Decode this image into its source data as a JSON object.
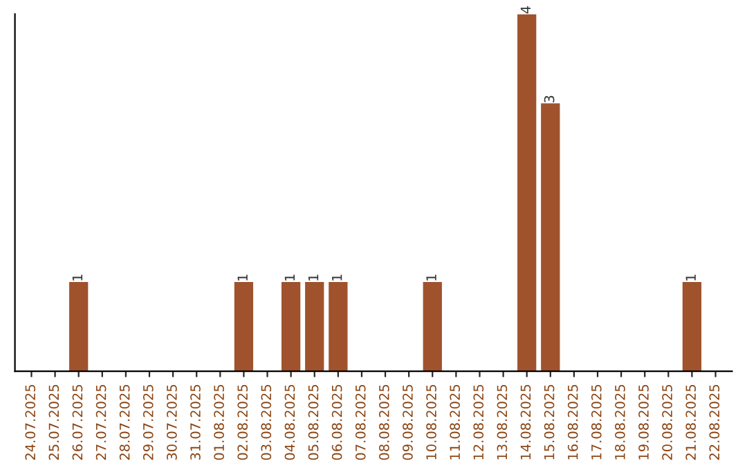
{
  "chart_data": {
    "type": "bar",
    "categories": [
      "24.07.2025",
      "25.07.2025",
      "26.07.2025",
      "27.07.2025",
      "28.07.2025",
      "29.07.2025",
      "30.07.2025",
      "31.07.2025",
      "01.08.2025",
      "02.08.2025",
      "03.08.2025",
      "04.08.2025",
      "05.08.2025",
      "06.08.2025",
      "07.08.2025",
      "08.08.2025",
      "09.08.2025",
      "10.08.2025",
      "11.08.2025",
      "12.08.2025",
      "13.08.2025",
      "14.08.2025",
      "15.08.2025",
      "16.08.2025",
      "17.08.2025",
      "18.08.2025",
      "19.08.2025",
      "20.08.2025",
      "21.08.2025",
      "22.08.2025"
    ],
    "values": [
      null,
      null,
      1,
      null,
      null,
      null,
      null,
      null,
      null,
      1,
      null,
      1,
      1,
      1,
      null,
      null,
      null,
      1,
      null,
      null,
      null,
      4,
      3,
      null,
      null,
      null,
      null,
      null,
      1,
      null
    ],
    "value_labels": [
      null,
      null,
      "1",
      null,
      null,
      null,
      null,
      null,
      null,
      "1",
      null,
      "1",
      "1",
      "1",
      null,
      null,
      null,
      "1",
      null,
      null,
      null,
      "4",
      "3",
      null,
      null,
      null,
      null,
      null,
      "1",
      null
    ],
    "color": "#a0522d",
    "tick_labels": "x",
    "grid": false,
    "legend": false
  }
}
